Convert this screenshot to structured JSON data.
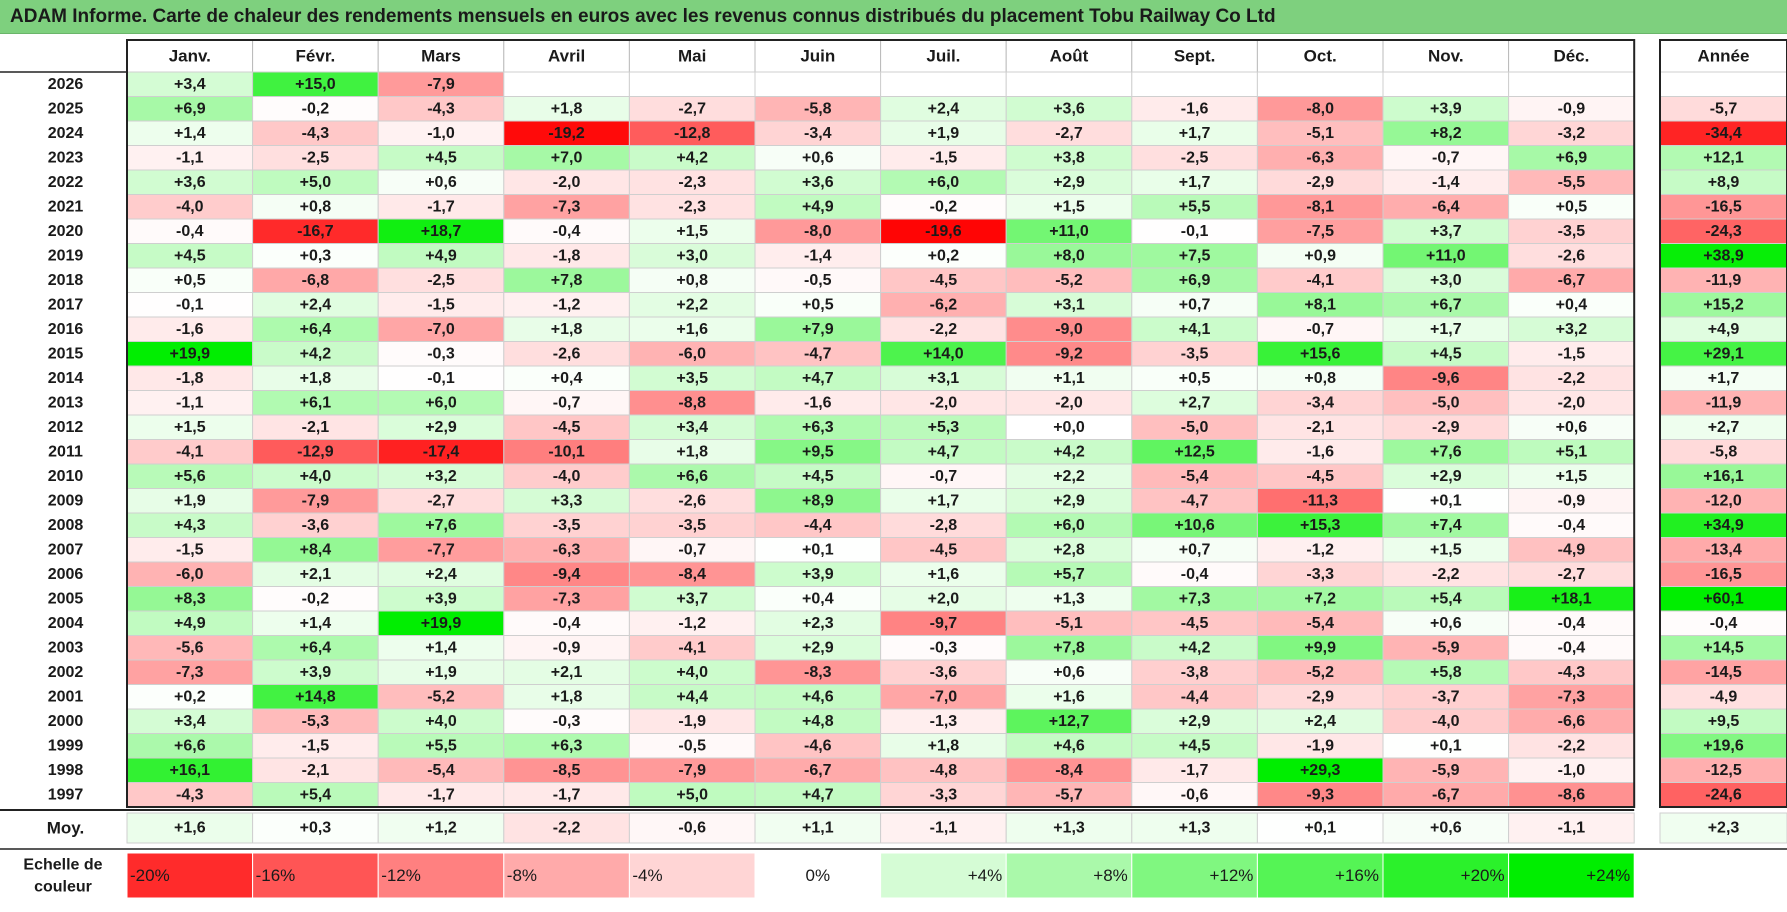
{
  "title": "ADAM Informe. Carte de chaleur des rendements mensuels en euros avec les revenus connus distribués du placement Tobu Railway Co Ltd",
  "chart_data": {
    "type": "heatmap",
    "months": [
      "Janv.",
      "Févr.",
      "Mars",
      "Avril",
      "Mai",
      "Juin",
      "Juil.",
      "Août",
      "Sept.",
      "Oct.",
      "Nov.",
      "Déc."
    ],
    "annual_header": "Année",
    "rows": [
      {
        "year": "2026",
        "values": [
          "+3,4",
          "+15,0",
          "-7,9",
          null,
          null,
          null,
          null,
          null,
          null,
          null,
          null,
          null
        ],
        "annual": null
      },
      {
        "year": "2025",
        "values": [
          "+6,9",
          "-0,2",
          "-4,3",
          "+1,8",
          "-2,7",
          "-5,8",
          "+2,4",
          "+3,6",
          "-1,6",
          "-8,0",
          "+3,9",
          "-0,9"
        ],
        "annual": "-5,7"
      },
      {
        "year": "2024",
        "values": [
          "+1,4",
          "-4,3",
          "-1,0",
          "-19,2",
          "-12,8",
          "-3,4",
          "+1,9",
          "-2,7",
          "+1,7",
          "-5,1",
          "+8,2",
          "-3,2"
        ],
        "annual": "-34,4"
      },
      {
        "year": "2023",
        "values": [
          "-1,1",
          "-2,5",
          "+4,5",
          "+7,0",
          "+4,2",
          "+0,6",
          "-1,5",
          "+3,8",
          "-2,5",
          "-6,3",
          "-0,7",
          "+6,9"
        ],
        "annual": "+12,1"
      },
      {
        "year": "2022",
        "values": [
          "+3,6",
          "+5,0",
          "+0,6",
          "-2,0",
          "-2,3",
          "+3,6",
          "+6,0",
          "+2,9",
          "+1,7",
          "-2,9",
          "-1,4",
          "-5,5"
        ],
        "annual": "+8,9"
      },
      {
        "year": "2021",
        "values": [
          "-4,0",
          "+0,8",
          "-1,7",
          "-7,3",
          "-2,3",
          "+4,9",
          "-0,2",
          "+1,5",
          "+5,5",
          "-8,1",
          "-6,4",
          "+0,5"
        ],
        "annual": "-16,5"
      },
      {
        "year": "2020",
        "values": [
          "-0,4",
          "-16,7",
          "+18,7",
          "-0,4",
          "+1,5",
          "-8,0",
          "-19,6",
          "+11,0",
          "-0,1",
          "-7,5",
          "+3,7",
          "-3,5"
        ],
        "annual": "-24,3"
      },
      {
        "year": "2019",
        "values": [
          "+4,5",
          "+0,3",
          "+4,9",
          "-1,8",
          "+3,0",
          "-1,4",
          "+0,2",
          "+8,0",
          "+7,5",
          "+0,9",
          "+11,0",
          "-2,6"
        ],
        "annual": "+38,9"
      },
      {
        "year": "2018",
        "values": [
          "+0,5",
          "-6,8",
          "-2,5",
          "+7,8",
          "+0,8",
          "-0,5",
          "-4,5",
          "-5,2",
          "+6,9",
          "-4,1",
          "+3,0",
          "-6,7"
        ],
        "annual": "-11,9"
      },
      {
        "year": "2017",
        "values": [
          "-0,1",
          "+2,4",
          "-1,5",
          "-1,2",
          "+2,2",
          "+0,5",
          "-6,2",
          "+3,1",
          "+0,7",
          "+8,1",
          "+6,7",
          "+0,4"
        ],
        "annual": "+15,2"
      },
      {
        "year": "2016",
        "values": [
          "-1,6",
          "+6,4",
          "-7,0",
          "+1,8",
          "+1,6",
          "+7,9",
          "-2,2",
          "-9,0",
          "+4,1",
          "-0,7",
          "+1,7",
          "+3,2"
        ],
        "annual": "+4,9"
      },
      {
        "year": "2015",
        "values": [
          "+19,9",
          "+4,2",
          "-0,3",
          "-2,6",
          "-6,0",
          "-4,7",
          "+14,0",
          "-9,2",
          "-3,5",
          "+15,6",
          "+4,5",
          "-1,5"
        ],
        "annual": "+29,1"
      },
      {
        "year": "2014",
        "values": [
          "-1,8",
          "+1,8",
          "-0,1",
          "+0,4",
          "+3,5",
          "+4,7",
          "+3,1",
          "+1,1",
          "+0,5",
          "+0,8",
          "-9,6",
          "-2,2"
        ],
        "annual": "+1,7"
      },
      {
        "year": "2013",
        "values": [
          "-1,1",
          "+6,1",
          "+6,0",
          "-0,7",
          "-8,8",
          "-1,6",
          "-2,0",
          "-2,0",
          "+2,7",
          "-3,4",
          "-5,0",
          "-2,0"
        ],
        "annual": "-11,9"
      },
      {
        "year": "2012",
        "values": [
          "+1,5",
          "-2,1",
          "+2,9",
          "-4,5",
          "+3,4",
          "+6,3",
          "+5,3",
          "+0,0",
          "-5,0",
          "-2,1",
          "-2,9",
          "+0,6"
        ],
        "annual": "+2,7"
      },
      {
        "year": "2011",
        "values": [
          "-4,1",
          "-12,9",
          "-17,4",
          "-10,1",
          "+1,8",
          "+9,5",
          "+4,7",
          "+4,2",
          "+12,5",
          "-1,6",
          "+7,6",
          "+5,1"
        ],
        "annual": "-5,8"
      },
      {
        "year": "2010",
        "values": [
          "+5,6",
          "+4,0",
          "+3,2",
          "-4,0",
          "+6,6",
          "+4,5",
          "-0,7",
          "+2,2",
          "-5,4",
          "-4,5",
          "+2,9",
          "+1,5"
        ],
        "annual": "+16,1"
      },
      {
        "year": "2009",
        "values": [
          "+1,9",
          "-7,9",
          "-2,7",
          "+3,3",
          "-2,6",
          "+8,9",
          "+1,7",
          "+2,9",
          "-4,7",
          "-11,3",
          "+0,1",
          "-0,9"
        ],
        "annual": "-12,0"
      },
      {
        "year": "2008",
        "values": [
          "+4,3",
          "-3,6",
          "+7,6",
          "-3,5",
          "-3,5",
          "-4,4",
          "-2,8",
          "+6,0",
          "+10,6",
          "+15,3",
          "+7,4",
          "-0,4"
        ],
        "annual": "+34,9"
      },
      {
        "year": "2007",
        "values": [
          "-1,5",
          "+8,4",
          "-7,7",
          "-6,3",
          "-0,7",
          "+0,1",
          "-4,5",
          "+2,8",
          "+0,7",
          "-1,2",
          "+1,5",
          "-4,9"
        ],
        "annual": "-13,4"
      },
      {
        "year": "2006",
        "values": [
          "-6,0",
          "+2,1",
          "+2,4",
          "-9,4",
          "-8,4",
          "+3,9",
          "+1,6",
          "+5,7",
          "-0,4",
          "-3,3",
          "-2,2",
          "-2,7"
        ],
        "annual": "-16,5"
      },
      {
        "year": "2005",
        "values": [
          "+8,3",
          "-0,2",
          "+3,9",
          "-7,3",
          "+3,7",
          "+0,4",
          "+2,0",
          "+1,3",
          "+7,3",
          "+7,2",
          "+5,4",
          "+18,1"
        ],
        "annual": "+60,1"
      },
      {
        "year": "2004",
        "values": [
          "+4,9",
          "+1,4",
          "+19,9",
          "-0,4",
          "-1,2",
          "+2,3",
          "-9,7",
          "-5,1",
          "-4,5",
          "-5,4",
          "+0,6",
          "-0,4"
        ],
        "annual": "-0,4"
      },
      {
        "year": "2003",
        "values": [
          "-5,6",
          "+6,4",
          "+1,4",
          "-0,9",
          "-4,1",
          "+2,9",
          "-0,3",
          "+7,8",
          "+4,2",
          "+9,9",
          "-5,9",
          "-0,4"
        ],
        "annual": "+14,5"
      },
      {
        "year": "2002",
        "values": [
          "-7,3",
          "+3,9",
          "+1,9",
          "+2,1",
          "+4,0",
          "-8,3",
          "-3,6",
          "+0,6",
          "-3,8",
          "-5,2",
          "+5,8",
          "-4,3"
        ],
        "annual": "-14,5"
      },
      {
        "year": "2001",
        "values": [
          "+0,2",
          "+14,8",
          "-5,2",
          "+1,8",
          "+4,4",
          "+4,6",
          "-7,0",
          "+1,6",
          "-4,4",
          "-2,9",
          "-3,7",
          "-7,3"
        ],
        "annual": "-4,9"
      },
      {
        "year": "2000",
        "values": [
          "+3,4",
          "-5,3",
          "+4,0",
          "-0,3",
          "-1,9",
          "+4,8",
          "-1,3",
          "+12,7",
          "+2,9",
          "+2,4",
          "-4,0",
          "-6,6"
        ],
        "annual": "+9,5"
      },
      {
        "year": "1999",
        "values": [
          "+6,6",
          "-1,5",
          "+5,5",
          "+6,3",
          "-0,5",
          "-4,6",
          "+1,8",
          "+4,6",
          "+4,5",
          "-1,9",
          "+0,1",
          "-2,2"
        ],
        "annual": "+19,6"
      },
      {
        "year": "1998",
        "values": [
          "+16,1",
          "-2,1",
          "-5,4",
          "-8,5",
          "-7,9",
          "-6,7",
          "-4,8",
          "-8,4",
          "-1,7",
          "+29,3",
          "-5,9",
          "-1,0"
        ],
        "annual": "-12,5"
      },
      {
        "year": "1997",
        "values": [
          "-4,3",
          "+5,4",
          "-1,7",
          "-1,7",
          "+5,0",
          "+4,7",
          "-3,3",
          "-5,7",
          "-0,6",
          "-9,3",
          "-6,7",
          "-8,6"
        ],
        "annual": "-24,6"
      }
    ],
    "average": {
      "label": "Moy.",
      "values": [
        "+1,6",
        "+0,3",
        "+1,2",
        "-2,2",
        "-0,6",
        "+1,1",
        "-1,1",
        "+1,3",
        "+1,3",
        "+0,1",
        "+0,6",
        "-1,1"
      ],
      "annual": "+2,3"
    },
    "scale": {
      "label_line1": "Echelle de",
      "label_line2": "couleur",
      "steps": [
        {
          "label": "-20%",
          "value": -20
        },
        {
          "label": "-16%",
          "value": -16
        },
        {
          "label": "-12%",
          "value": -12
        },
        {
          "label": "-8%",
          "value": -8
        },
        {
          "label": "-4%",
          "value": -4
        },
        {
          "label": "0%",
          "value": 0
        },
        {
          "label": "+4%",
          "value": 4
        },
        {
          "label": "+8%",
          "value": 8
        },
        {
          "label": "+12%",
          "value": 12
        },
        {
          "label": "+16%",
          "value": 16
        },
        {
          "label": "+20%",
          "value": 20
        },
        {
          "label": "+24%",
          "value": 24
        }
      ]
    },
    "colors": {
      "negative": "#ff0000",
      "positive": "#00ee00",
      "neutral": "#ffffff",
      "title_bg": "#7ed07e"
    }
  }
}
